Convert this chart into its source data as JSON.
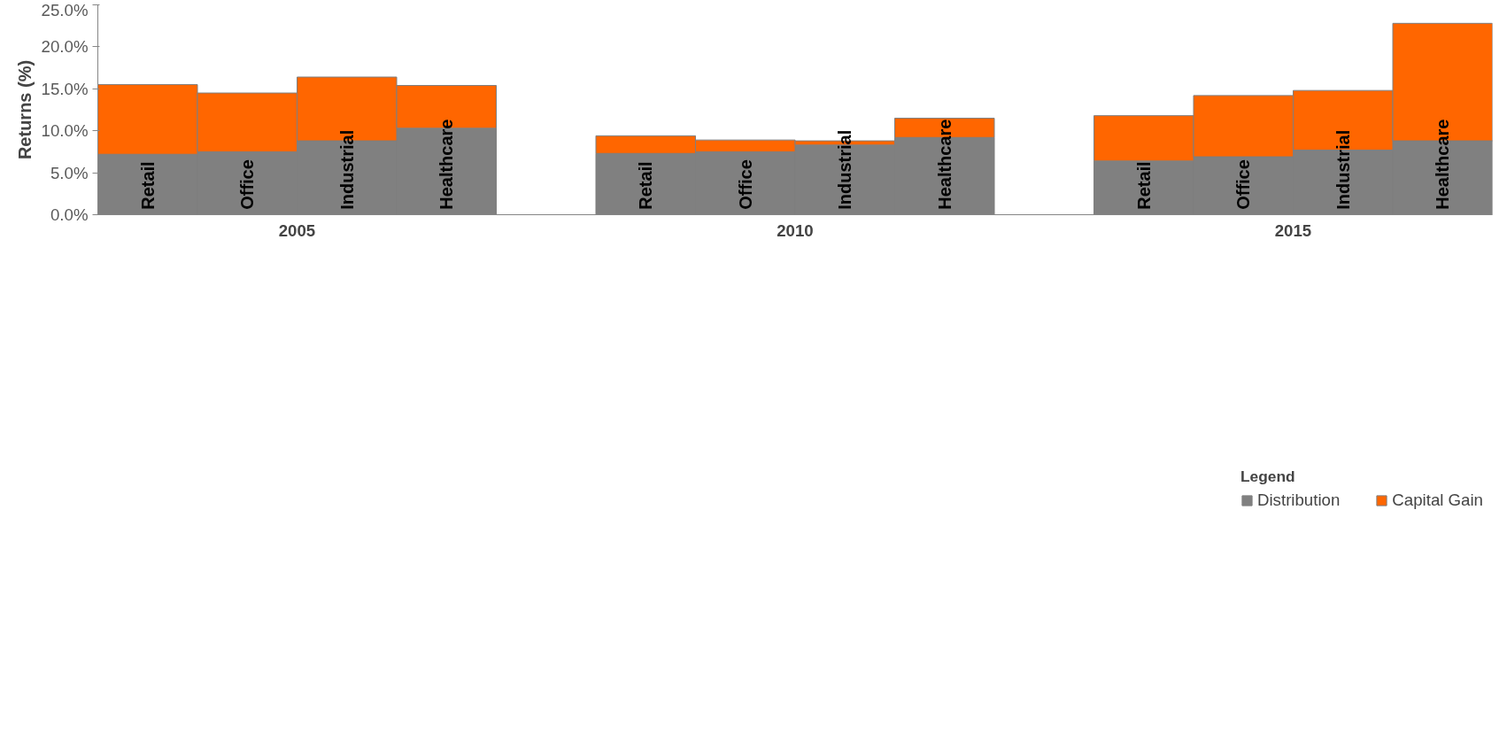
{
  "chart_data": {
    "type": "bar",
    "stacked": true,
    "ylabel": "Returns (%)",
    "legend_title": "Legend",
    "legend": "bottom",
    "grid": false,
    "categories": [
      "Retail",
      "Office",
      "Industrial",
      "Healthcare",
      "Retail",
      "Office",
      "Industrial",
      "Healthcare",
      "Retail",
      "Office",
      "Industrial",
      "Healthcare"
    ],
    "annotations": [
      "2005",
      "2010",
      "2015"
    ],
    "series": [
      {
        "name": "Distribution",
        "color": "#808080",
        "values": [
          7.2,
          7.5,
          8.8,
          10.3,
          7.3,
          7.5,
          8.3,
          9.2,
          6.4,
          6.9,
          7.7,
          8.8
        ]
      },
      {
        "name": "Capital Gain",
        "color": "#ff6600",
        "values": [
          8.3,
          7.0,
          7.6,
          5.1,
          2.1,
          1.4,
          0.5,
          2.3,
          5.4,
          7.3,
          7.1,
          14.0
        ]
      }
    ],
    "ylim": [
      0,
      25
    ],
    "yticks": [
      {
        "value": 0,
        "label": "0.0%"
      },
      {
        "value": 5,
        "label": "5.0%"
      },
      {
        "value": 10,
        "label": "10.0%"
      },
      {
        "value": 15,
        "label": "15.0%"
      },
      {
        "value": 20,
        "label": "20.0%"
      },
      {
        "value": 25,
        "label": "25.0%"
      }
    ]
  }
}
